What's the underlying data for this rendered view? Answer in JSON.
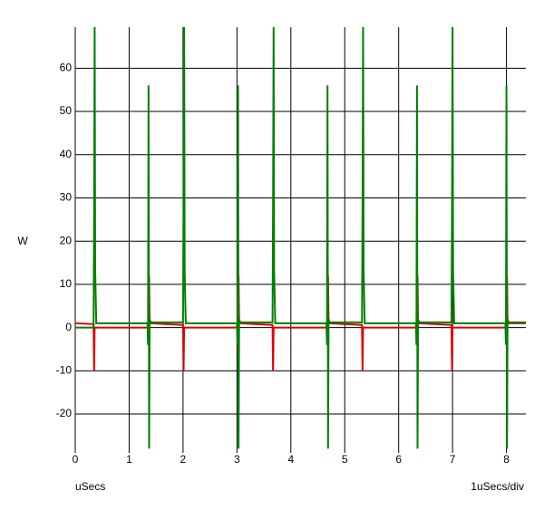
{
  "chart_data": {
    "type": "line",
    "y_label": "W",
    "x_label": "uSecs",
    "scale_label": "1uSecs/div",
    "xlim": [
      0,
      8.36
    ],
    "ylim": [
      -29,
      69.5
    ],
    "xticks": [
      0,
      1,
      2,
      3,
      4,
      5,
      6,
      7,
      8
    ],
    "yticks": [
      -20,
      -10,
      0,
      10,
      20,
      30,
      40,
      50,
      60
    ],
    "grid": true,
    "series": [
      {
        "color": "#e00000",
        "x": [
          0,
          0.34,
          0.35,
          0.36,
          1.36,
          1.37,
          1.38,
          2.0,
          2.01,
          2.02,
          3.02,
          3.03,
          3.04,
          3.66,
          3.67,
          3.68,
          4.68,
          4.69,
          4.7,
          5.32,
          5.33,
          5.34,
          6.34,
          6.35,
          6.36,
          6.98,
          6.99,
          7.0,
          8.0,
          8.01,
          8.02,
          8.36
        ],
        "values": [
          1,
          0.8,
          -10,
          0,
          0,
          12,
          1,
          0.6,
          -10,
          0,
          0,
          12,
          1,
          0.6,
          -10,
          0,
          0,
          12,
          1,
          0.6,
          -10,
          0,
          0,
          12,
          1,
          0.6,
          -10,
          0,
          0,
          12,
          1,
          1
        ]
      },
      {
        "color": "#008000",
        "x": [
          0,
          0.34,
          0.35,
          0.36,
          0.37,
          0.39,
          1.34,
          1.35,
          1.36,
          1.37,
          1.38,
          1.4,
          2.0,
          2.01,
          2.02,
          2.03,
          2.05,
          3.0,
          3.01,
          3.02,
          3.03,
          3.04,
          3.06,
          3.66,
          3.67,
          3.68,
          3.69,
          3.71,
          4.66,
          4.67,
          4.68,
          4.69,
          4.7,
          4.72,
          5.32,
          5.33,
          5.34,
          5.35,
          5.37,
          6.32,
          6.33,
          6.34,
          6.35,
          6.36,
          6.38,
          6.98,
          6.99,
          7.0,
          7.01,
          7.03,
          7.98,
          7.99,
          8.0,
          8.01,
          8.02,
          8.04,
          8.36
        ],
        "values": [
          0,
          0,
          28,
          70,
          13,
          1,
          1,
          -4,
          56,
          -28,
          2,
          1.2,
          1.2,
          28,
          70,
          13,
          1,
          1,
          -4,
          56,
          -28,
          2,
          1.2,
          1.2,
          28,
          70,
          13,
          1,
          1,
          -4,
          56,
          -28,
          2,
          1.2,
          1.2,
          28,
          70,
          13,
          1,
          1,
          -4,
          56,
          -28,
          2,
          1.2,
          1.2,
          28,
          70,
          13,
          1,
          1,
          -4,
          56,
          -28,
          2,
          1.2,
          1.2
        ]
      }
    ]
  }
}
